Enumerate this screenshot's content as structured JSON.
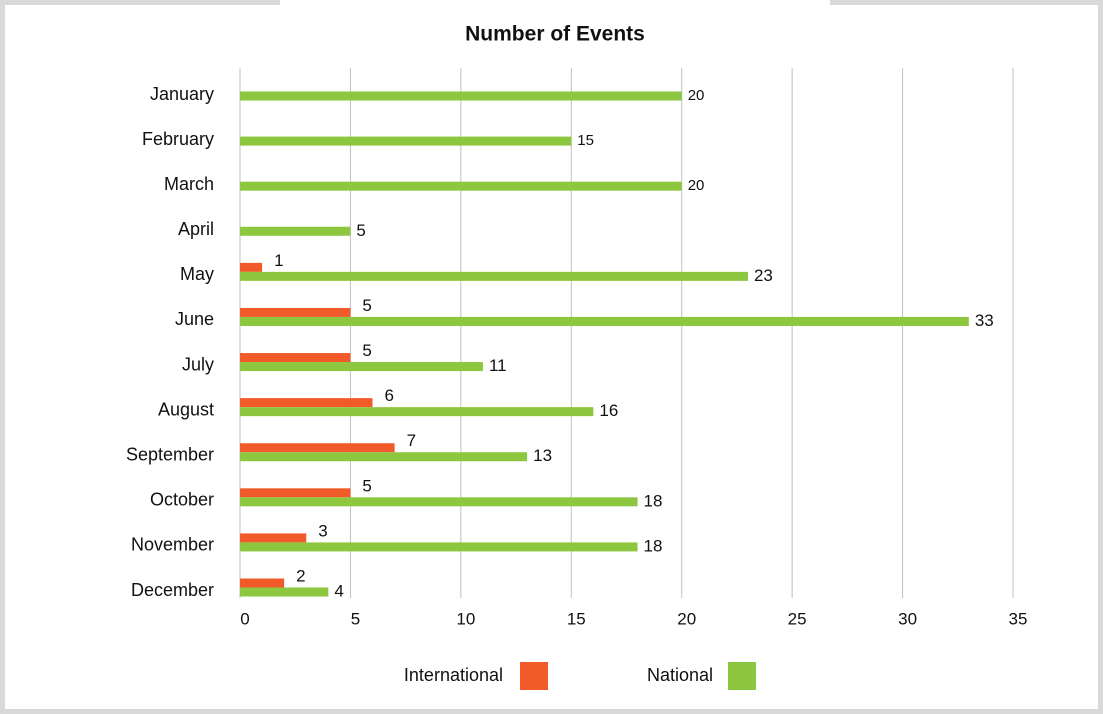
{
  "chart_data": {
    "type": "hbar",
    "title": "Number of Events",
    "categories": [
      "January",
      "February",
      "March",
      "April",
      "May",
      "June",
      "July",
      "August",
      "September",
      "October",
      "November",
      "December"
    ],
    "series": [
      {
        "name": "International",
        "color": "#f15a29",
        "values": [
          null,
          null,
          null,
          null,
          1,
          5,
          5,
          6,
          7,
          5,
          3,
          2
        ]
      },
      {
        "name": "National",
        "color": "#8dc63f",
        "values": [
          20,
          15,
          20,
          5,
          23,
          33,
          11,
          16,
          13,
          18,
          18,
          4
        ]
      }
    ],
    "xlim": [
      0,
      35
    ],
    "xticks": [
      0,
      5,
      10,
      15,
      20,
      25,
      30,
      35
    ],
    "grid": true,
    "legend": "bottom"
  }
}
